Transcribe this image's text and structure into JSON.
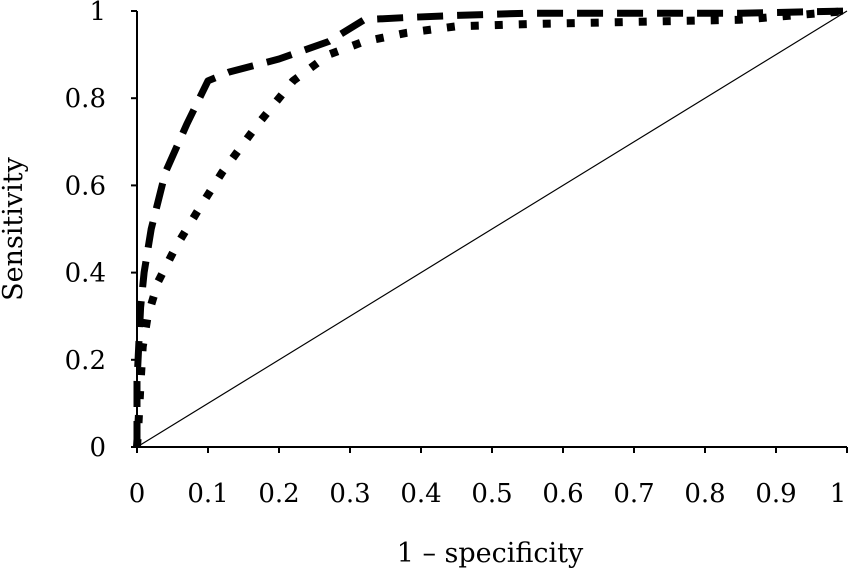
{
  "chart_data": {
    "type": "line",
    "title": "",
    "xlabel": "1 – specificity",
    "ylabel": "Sensitivity",
    "xlim": [
      0,
      1
    ],
    "ylim": [
      0,
      1
    ],
    "x_ticks": [
      "0",
      "0.1",
      "0.2",
      "0.3",
      "0.4",
      "0.5",
      "0.6",
      "0.7",
      "0.8",
      "0.9",
      "1"
    ],
    "y_ticks": [
      "0",
      "0.2",
      "0.4",
      "0.6",
      "0.8",
      "1"
    ],
    "grid": false,
    "legend": "none",
    "series": [
      {
        "style": "dashed",
        "color": "#000000",
        "x": [
          0,
          0,
          0.005,
          0.01,
          0.02,
          0.04,
          0.07,
          0.1,
          0.13,
          0.2,
          0.27,
          0.32,
          0.38,
          0.45,
          0.55,
          0.7,
          0.85,
          1.0
        ],
        "y": [
          0,
          0.15,
          0.32,
          0.4,
          0.5,
          0.63,
          0.74,
          0.84,
          0.86,
          0.89,
          0.93,
          0.98,
          0.985,
          0.99,
          0.995,
          0.995,
          0.995,
          1.0
        ]
      },
      {
        "style": "dotted",
        "color": "#000000",
        "x": [
          0,
          0.002,
          0.005,
          0.008,
          0.015,
          0.03,
          0.055,
          0.085,
          0.12,
          0.17,
          0.22,
          0.27,
          0.32,
          0.38,
          0.45,
          0.55,
          0.7,
          0.85,
          1.0
        ],
        "y": [
          0,
          0.05,
          0.15,
          0.23,
          0.3,
          0.38,
          0.46,
          0.54,
          0.63,
          0.74,
          0.84,
          0.9,
          0.93,
          0.95,
          0.965,
          0.97,
          0.975,
          0.98,
          1.0
        ]
      },
      {
        "style": "reference",
        "color": "#000000",
        "x": [
          0,
          1
        ],
        "y": [
          0,
          1
        ]
      }
    ]
  }
}
